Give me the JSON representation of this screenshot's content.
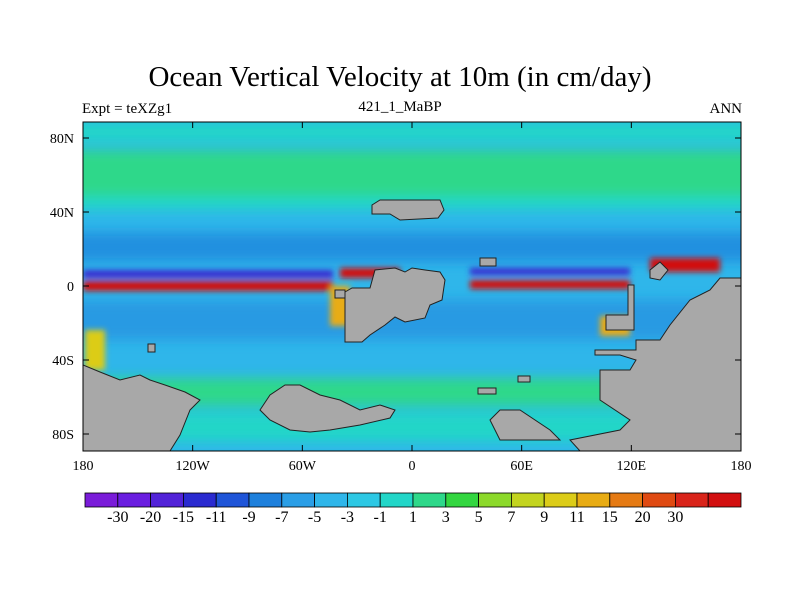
{
  "title": "Ocean Vertical Velocity at 10m (in cm/day)",
  "subtitle_left": "Expt = teXZg1",
  "subtitle_center": "421_1_MaBP",
  "subtitle_right": "ANN",
  "y_ticks": [
    {
      "lat": 80,
      "label": "80N"
    },
    {
      "lat": 40,
      "label": "40N"
    },
    {
      "lat": 0,
      "label": "0"
    },
    {
      "lat": -40,
      "label": "40S"
    },
    {
      "lat": -80,
      "label": "80S"
    }
  ],
  "x_ticks": [
    {
      "lon": -180,
      "label": "180"
    },
    {
      "lon": -120,
      "label": "120W"
    },
    {
      "lon": -60,
      "label": "60W"
    },
    {
      "lon": 0,
      "label": "0"
    },
    {
      "lon": 60,
      "label": "60E"
    },
    {
      "lon": 120,
      "label": "120E"
    },
    {
      "lon": 180,
      "label": "180"
    }
  ],
  "colorbar": {
    "colors": [
      "#7a1cd9",
      "#6a1ee0",
      "#5223d8",
      "#2a2ad0",
      "#1f55d8",
      "#1e80dc",
      "#2a9ee6",
      "#2fb6ea",
      "#2dc8e4",
      "#22d6c8",
      "#2ed88a",
      "#33d640",
      "#8cd92a",
      "#c3d41f",
      "#dccc18",
      "#e8ac14",
      "#e57a13",
      "#df4a12",
      "#d9241a",
      "#d20f10"
    ],
    "labels": [
      "-30",
      "-20",
      "-15",
      "-11",
      "-9",
      "-7",
      "-5",
      "-3",
      "-1",
      "1",
      "3",
      "5",
      "7",
      "9",
      "11",
      "15",
      "20",
      "30"
    ]
  },
  "colors": {
    "land": "#a8a8a8",
    "ocean_base": "#2fb6ea",
    "mid_lat_band": "#2ed88a",
    "upwelling": "#d20f10",
    "downwelling": "#3a2ad0"
  }
}
